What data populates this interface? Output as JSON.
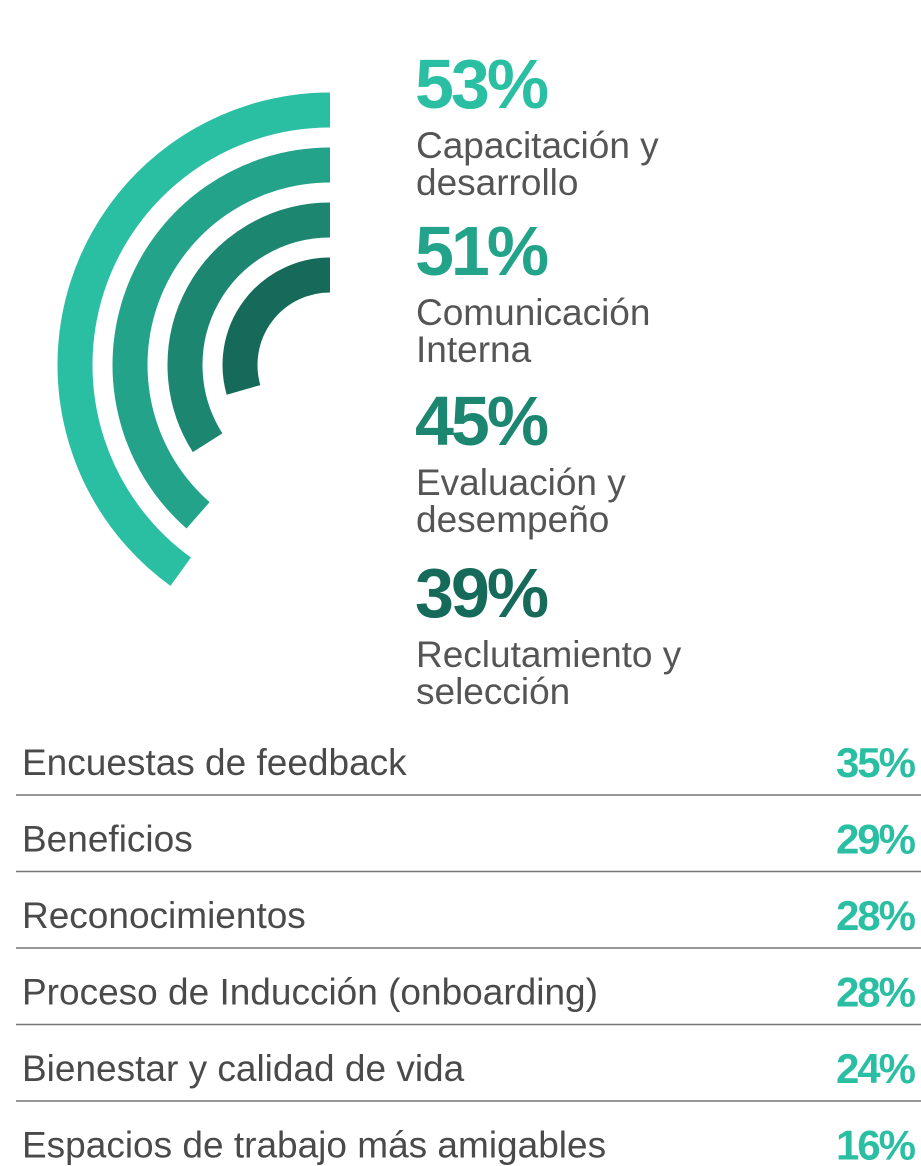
{
  "chart_data": {
    "type": "radial_bar",
    "categories": [
      [
        "Capacitación y",
        "desarrollo"
      ],
      [
        "Comunicación",
        "Interna"
      ],
      [
        "Evaluación y",
        "desempeño"
      ],
      [
        "Reclutamiento y",
        "selección"
      ]
    ],
    "values": [
      53,
      51,
      45,
      39
    ],
    "value_labels": [
      "53%",
      "51%",
      "45%",
      "39%"
    ],
    "colors": [
      "#2abfa3",
      "#22a38a",
      "#1c8670",
      "#166a59"
    ]
  },
  "list": {
    "rows": [
      {
        "label": "Encuestas de feedback",
        "value": "35%"
      },
      {
        "label": "Beneficios",
        "value": "29%"
      },
      {
        "label": "Reconocimientos",
        "value": "28%"
      },
      {
        "label": "Proceso de Inducción (onboarding)",
        "value": "28%"
      },
      {
        "label": "Bienestar y calidad de vida",
        "value": "24%"
      },
      {
        "label": "Espacios de trabajo más amigables",
        "value": "16%"
      }
    ]
  }
}
